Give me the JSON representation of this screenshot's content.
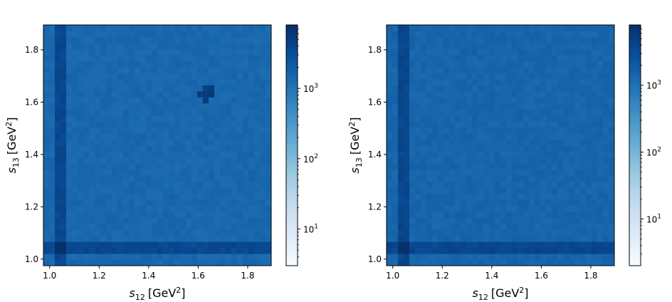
{
  "chart_data": [
    {
      "type": "heatmap",
      "title": "",
      "xlabel": "s12 [GeV2]",
      "ylabel": "s13 [GeV2]",
      "xlabel_parts": {
        "sym": "s",
        "sub": "12",
        "unit": "[GeV",
        "sup": "2",
        "close": "]"
      },
      "ylabel_parts": {
        "sym": "s",
        "sub": "13",
        "unit": "[GeV",
        "sup": "2",
        "close": "]"
      },
      "xlim": [
        0.975,
        1.895
      ],
      "ylim": [
        0.975,
        1.895
      ],
      "xticks": [
        1.0,
        1.2,
        1.4,
        1.6,
        1.8
      ],
      "xtick_labels": [
        "1.0",
        "1.2",
        "1.4",
        "1.6",
        "1.8"
      ],
      "yticks": [
        1.0,
        1.2,
        1.4,
        1.6,
        1.8
      ],
      "ytick_labels": [
        "1.0",
        "1.2",
        "1.4",
        "1.6",
        "1.8"
      ],
      "bins": 40,
      "typical_count": 1500,
      "colorbar": {
        "scale": "log",
        "min": 3,
        "max": 8000,
        "ticks": [
          10,
          100,
          1000
        ],
        "tick_bases": [
          "10",
          "10",
          "10"
        ],
        "tick_exps": [
          "1",
          "2",
          "3"
        ],
        "colormap": "Blues"
      },
      "hotspot": {
        "x": 1.64,
        "y": 1.64,
        "count": 6000
      }
    },
    {
      "type": "heatmap",
      "title": "",
      "xlabel": "s12 [GeV2]",
      "ylabel": "s13 [GeV2]",
      "xlabel_parts": {
        "sym": "s",
        "sub": "12",
        "unit": "[GeV",
        "sup": "2",
        "close": "]"
      },
      "ylabel_parts": {
        "sym": "s",
        "sub": "13",
        "unit": "[GeV",
        "sup": "2",
        "close": "]"
      },
      "xlim": [
        0.975,
        1.895
      ],
      "ylim": [
        0.975,
        1.895
      ],
      "xticks": [
        1.0,
        1.2,
        1.4,
        1.6,
        1.8
      ],
      "xtick_labels": [
        "1.0",
        "1.2",
        "1.4",
        "1.6",
        "1.8"
      ],
      "yticks": [
        1.0,
        1.2,
        1.4,
        1.6,
        1.8
      ],
      "ytick_labels": [
        "1.0",
        "1.2",
        "1.4",
        "1.6",
        "1.8"
      ],
      "bins": 40,
      "typical_count": 1500,
      "colorbar": {
        "scale": "log",
        "min": 2,
        "max": 8000,
        "ticks": [
          10,
          100,
          1000
        ],
        "tick_bases": [
          "10",
          "10",
          "10"
        ],
        "tick_exps": [
          "1",
          "2",
          "3"
        ],
        "colormap": "Blues"
      },
      "hotspot": null
    }
  ]
}
